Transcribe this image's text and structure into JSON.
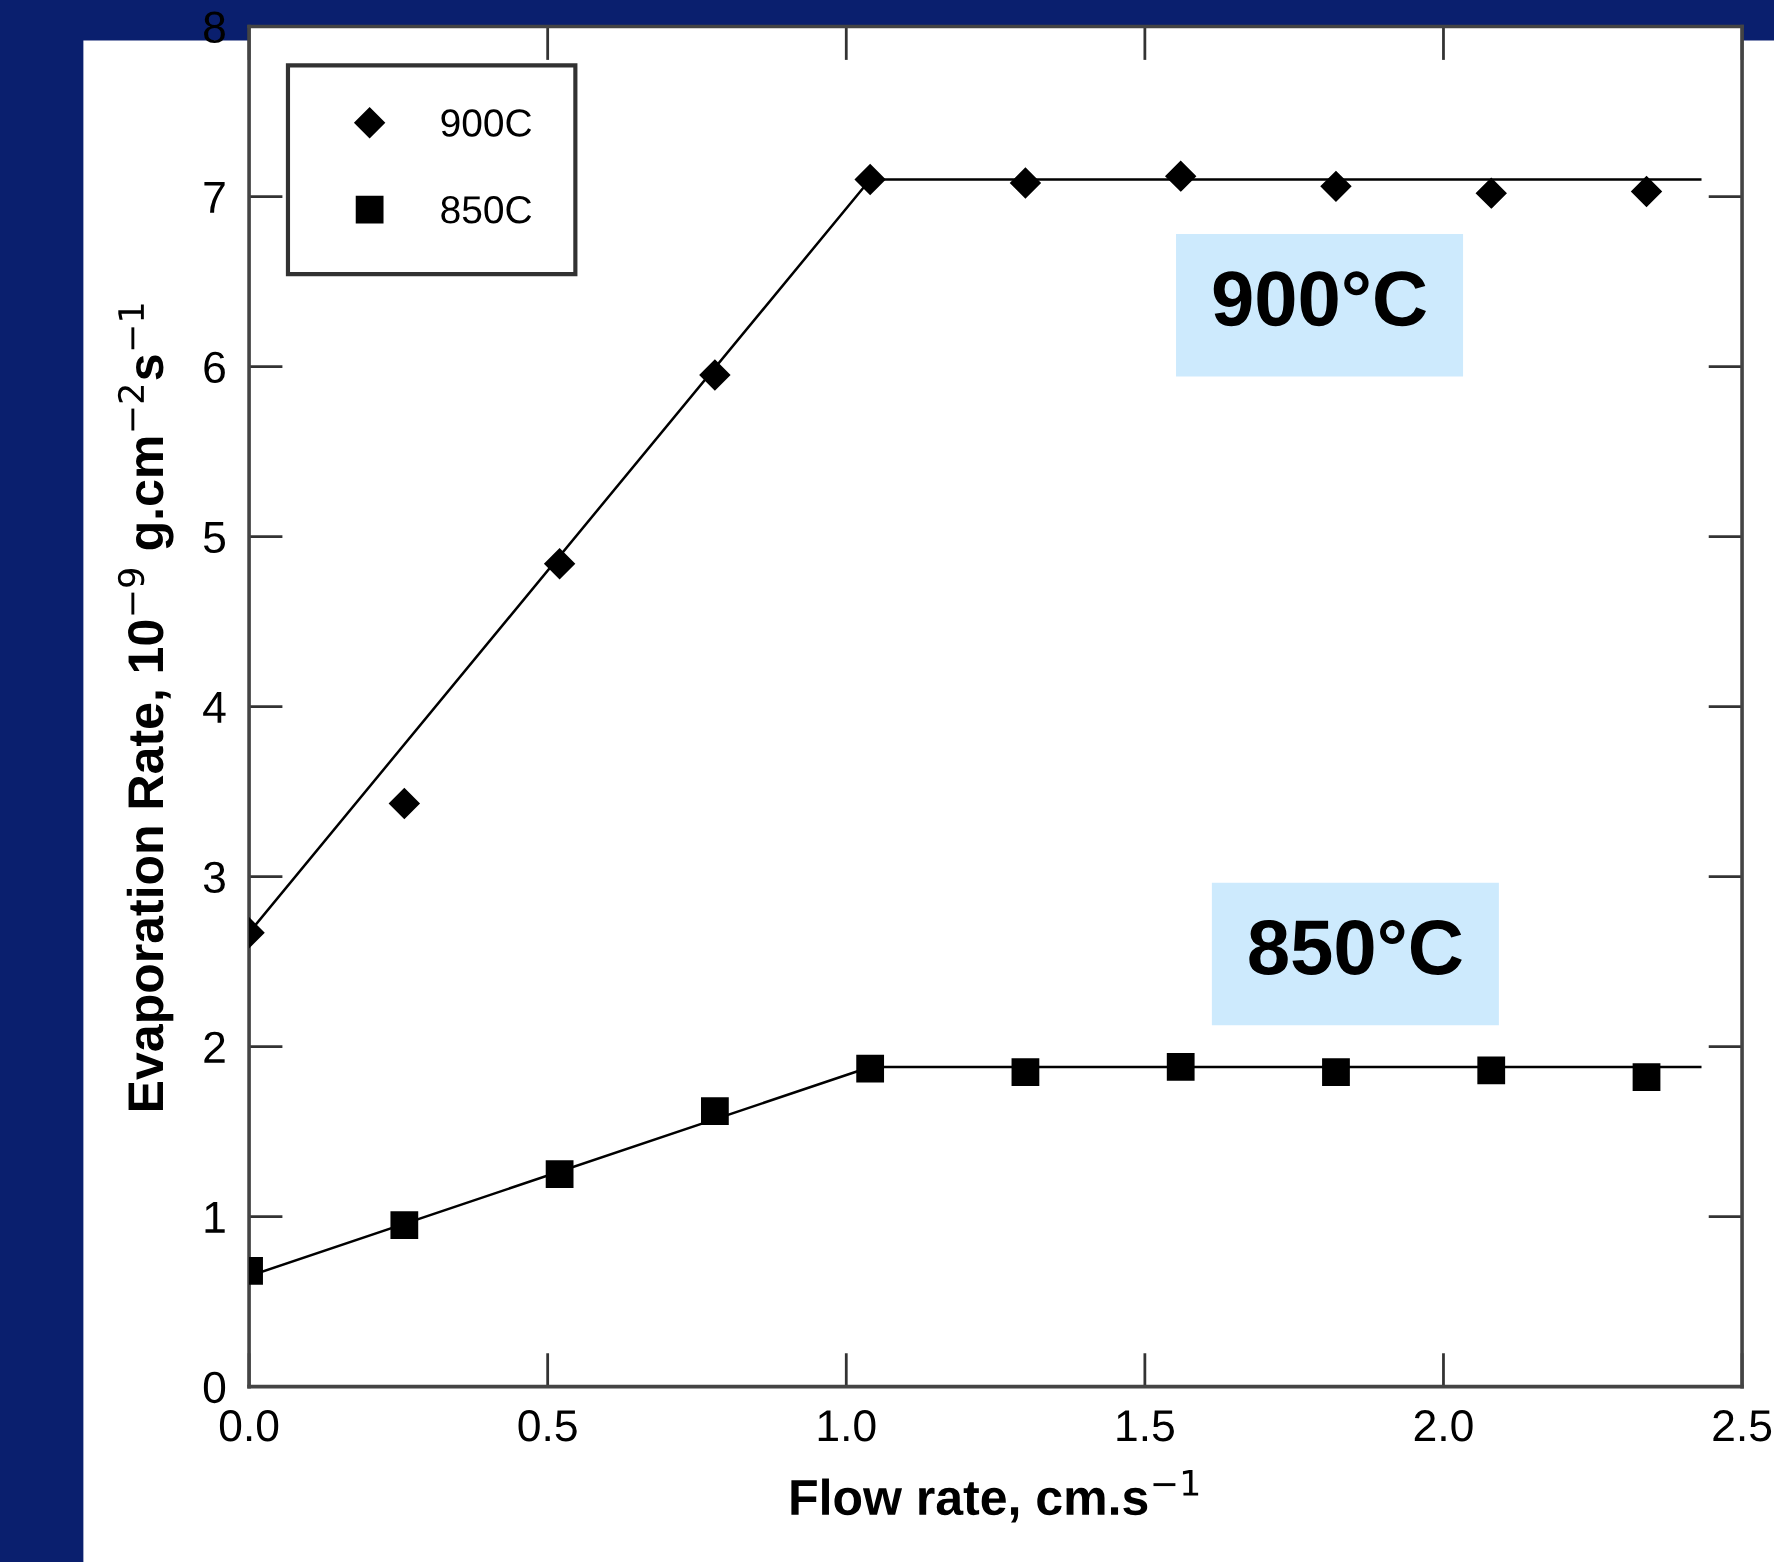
{
  "chart_data": {
    "type": "scatter",
    "xlabel": "Flow rate, cm.s$^{−1}$",
    "ylabel": "Evaporation Rate, 10$^{−9}$ g.cm$^{−2}$s$^{−1}$",
    "x": [
      0,
      0.26,
      0.52,
      0.78,
      1.04,
      1.3,
      1.56,
      1.82,
      2.08,
      2.34
    ],
    "series": [
      {
        "name": "900C",
        "color": "#000000",
        "marker": "diamond",
        "values": [
          2.67,
          3.43,
          4.84,
          5.95,
          7.1,
          7.08,
          7.12,
          7.06,
          7.02,
          7.03
        ]
      },
      {
        "name": "850C",
        "color": "#000000",
        "marker": "square",
        "values": [
          0.68,
          0.95,
          1.25,
          1.62,
          1.87,
          1.85,
          1.88,
          1.85,
          1.86,
          1.82
        ]
      },
      {
        "type": "line",
        "color": "#000000",
        "x": [
          0,
          1.04,
          2.43
        ],
        "values": [
          2.67,
          7.1,
          7.1
        ]
      },
      {
        "type": "line",
        "color": "#000000",
        "x": [
          0,
          1.04,
          2.43
        ],
        "values": [
          0.65,
          1.88,
          1.88
        ]
      }
    ],
    "annotations": [
      "900°C",
      "850°C"
    ],
    "xlim": [
      0,
      2.5
    ],
    "xticks": [
      {
        "value": 0,
        "label": "0.0"
      },
      0.5,
      {
        "value": 1,
        "label": "1.0"
      },
      1.5,
      {
        "value": 2,
        "label": "2.0"
      },
      2.5
    ],
    "ylim": [
      0,
      8
    ],
    "yticks": [
      0,
      1,
      2,
      3,
      4,
      5,
      6,
      7,
      8
    ],
    "grid": false,
    "legend": "top left"
  }
}
